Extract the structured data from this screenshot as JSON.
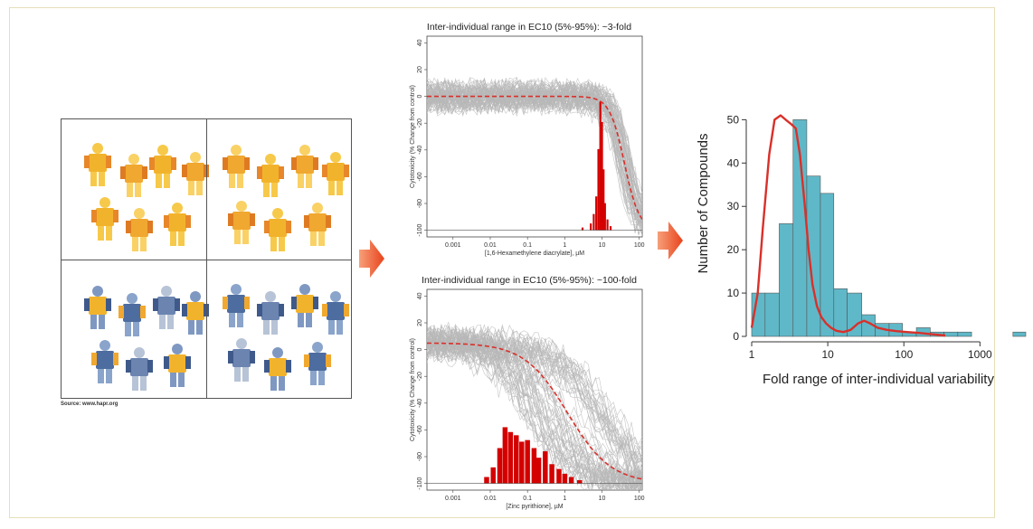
{
  "people": {
    "source": "Source: www.hapr.org"
  },
  "chart_data": [
    {
      "type": "line",
      "title": "Inter-individual range in EC10 (5%-95%): ~3-fold",
      "xlabel": "[1,6-Hexamethylene diacrylate], µM",
      "ylabel": "Cytotoxicity (% Change from control)",
      "x_scale": "log",
      "xlim": [
        0.0002,
        120
      ],
      "ylim": [
        -105,
        45
      ],
      "x_ticks": [
        "0.001",
        "0.01",
        "0.1",
        "1",
        "10",
        "100"
      ],
      "y_ticks": [
        "40",
        "20",
        "0",
        "-20",
        "-40",
        "-60",
        "-80",
        "-100"
      ],
      "median_curve": {
        "style": "dashed",
        "color": "#d9302a",
        "bottom": 0,
        "top": -100,
        "ec50": 40,
        "hill": 2.2
      },
      "spread": "narrow",
      "ec10_histogram": {
        "color": "#d40000",
        "x": [
          3,
          5,
          6,
          7,
          8,
          9,
          10,
          11,
          12,
          14,
          17
        ],
        "counts": [
          2,
          5,
          12,
          25,
          60,
          95,
          80,
          45,
          20,
          8,
          3
        ]
      }
    },
    {
      "type": "line",
      "title": "Inter-individual range in EC10 (5%-95%): ~100-fold",
      "xlabel": "[Zinc pyrithione], µM",
      "ylabel": "Cytotoxicity (% Change from control)",
      "x_scale": "log",
      "xlim": [
        0.0002,
        120
      ],
      "ylim": [
        -105,
        45
      ],
      "x_ticks": [
        "0.001",
        "0.01",
        "0.1",
        "1",
        "10",
        "100"
      ],
      "y_ticks": [
        "40",
        "20",
        "0",
        "-20",
        "-40",
        "-60",
        "-80",
        "-100"
      ],
      "median_curve": {
        "style": "dashed",
        "color": "#d9302a",
        "bottom": 5,
        "top": -100,
        "ec50": 1.2,
        "hill": 0.75
      },
      "spread": "wide",
      "ec10_histogram": {
        "color": "#d40000",
        "x": [
          0.008,
          0.012,
          0.018,
          0.025,
          0.035,
          0.05,
          0.07,
          0.1,
          0.15,
          0.2,
          0.3,
          0.45,
          0.7,
          1,
          1.5,
          2.5
        ],
        "counts": [
          4,
          10,
          22,
          35,
          32,
          30,
          26,
          27,
          22,
          16,
          20,
          12,
          9,
          6,
          4,
          2
        ]
      }
    },
    {
      "type": "bar",
      "xlabel": "Fold range of inter-individual variability",
      "ylabel": "Number of Compounds",
      "x_scale": "log",
      "xlim": [
        1,
        4000
      ],
      "ylim": [
        0,
        53
      ],
      "x_ticks": [
        "1",
        "10",
        "100",
        "1000"
      ],
      "y_ticks": [
        "0",
        "10",
        "20",
        "30",
        "40",
        "50"
      ],
      "bar_color": "#5fb8c8",
      "bins": [
        {
          "from": 1,
          "to": 1.5,
          "count": 10
        },
        {
          "from": 1.5,
          "to": 2.3,
          "count": 10
        },
        {
          "from": 2.3,
          "to": 3.5,
          "count": 26
        },
        {
          "from": 3.5,
          "to": 5.3,
          "count": 50
        },
        {
          "from": 5.3,
          "to": 8,
          "count": 37
        },
        {
          "from": 8,
          "to": 12,
          "count": 33
        },
        {
          "from": 12,
          "to": 18,
          "count": 11
        },
        {
          "from": 18,
          "to": 28,
          "count": 10
        },
        {
          "from": 28,
          "to": 42,
          "count": 5
        },
        {
          "from": 42,
          "to": 64,
          "count": 3
        },
        {
          "from": 64,
          "to": 96,
          "count": 3
        },
        {
          "from": 96,
          "to": 146,
          "count": 1
        },
        {
          "from": 146,
          "to": 222,
          "count": 2
        },
        {
          "from": 222,
          "to": 337,
          "count": 1
        },
        {
          "from": 337,
          "to": 511,
          "count": 1
        },
        {
          "from": 511,
          "to": 776,
          "count": 1
        },
        {
          "from": 776,
          "to": 1178,
          "count": 0
        },
        {
          "from": 1178,
          "to": 1788,
          "count": 0
        },
        {
          "from": 1788,
          "to": 2714,
          "count": 0
        },
        {
          "from": 2714,
          "to": 4000,
          "count": 1
        }
      ],
      "density_curve": {
        "color": "#d9302a",
        "x": [
          1,
          1.2,
          1.4,
          1.7,
          2,
          2.4,
          2.8,
          3.3,
          3.8,
          4.3,
          5,
          5.6,
          6.3,
          7.2,
          8.2,
          9.5,
          11,
          13,
          16,
          20,
          25,
          30,
          36,
          45,
          60,
          80,
          110,
          160,
          230,
          350
        ],
        "y": [
          2,
          10,
          25,
          42,
          50,
          51,
          50,
          49,
          48,
          42,
          30,
          20,
          12,
          7,
          4.5,
          3,
          2,
          1.3,
          1,
          1.5,
          3,
          3.6,
          3,
          2,
          1.5,
          1.2,
          1,
          0.8,
          0.5,
          0.2
        ]
      }
    }
  ]
}
